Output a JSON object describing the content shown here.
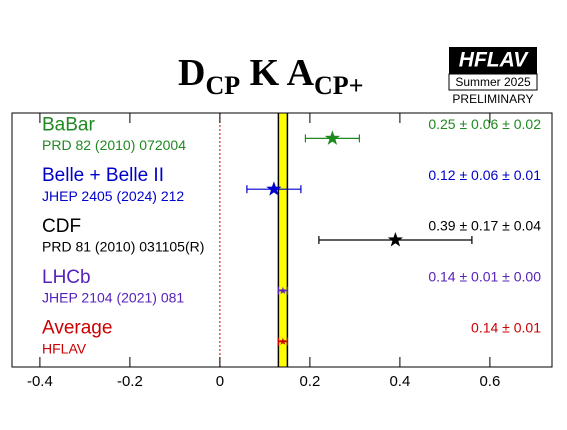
{
  "chart_data": {
    "type": "forest",
    "title": {
      "main": "D",
      "sub1": "CP",
      "mid": " K A",
      "sub2": "CP+"
    },
    "logo": {
      "name": "HFLAV",
      "season": "Summer 2025",
      "status": "PRELIMINARY"
    },
    "measurements": [
      {
        "name": "BaBar",
        "reference": "PRD 82 (2010) 072004",
        "value": 0.25,
        "error": 0.06,
        "label": "0.25 ± 0.06 ± 0.02",
        "color": "#1f8a1f"
      },
      {
        "name": "Belle + Belle II",
        "reference": "JHEP 2405 (2024) 212",
        "value": 0.12,
        "error": 0.06,
        "label": "0.12 ± 0.06 ± 0.01",
        "color": "#0000cc"
      },
      {
        "name": "CDF",
        "reference": "PRD 81 (2010) 031105(R)",
        "value": 0.39,
        "error": 0.17,
        "label": "0.39 ± 0.17 ± 0.04",
        "color": "#000000"
      },
      {
        "name": "LHCb",
        "reference": "JHEP 2104 (2021) 081",
        "value": 0.14,
        "error": 0.01,
        "label": "0.14 ± 0.01 ± 0.00",
        "color": "#5522bb"
      },
      {
        "name": "Average",
        "reference": "HFLAV",
        "value": 0.14,
        "error": 0.01,
        "label": "0.14 ± 0.01",
        "color": "#cc0000"
      }
    ],
    "xlim": [
      -0.462,
      0.738
    ],
    "xticks": [
      -0.4,
      -0.2,
      0,
      0.2,
      0.4,
      0.6
    ],
    "band_color": "#ffff00"
  }
}
